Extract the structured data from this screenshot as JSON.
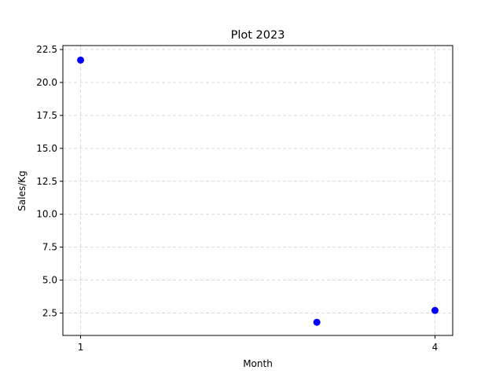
{
  "chart_data": {
    "type": "scatter",
    "title": "Plot 2023",
    "xlabel": "Month",
    "ylabel": "Sales/Kg",
    "x": [
      1,
      3,
      4
    ],
    "y": [
      21.7,
      1.8,
      2.7
    ],
    "xlim": [
      0.85,
      4.15
    ],
    "ylim": [
      0.8,
      22.8
    ],
    "xticks": [
      1,
      4
    ],
    "xtick_labels": [
      "1",
      "4"
    ],
    "yticks": [
      2.5,
      5.0,
      7.5,
      10.0,
      12.5,
      15.0,
      17.5,
      20.0,
      22.5
    ],
    "ytick_labels": [
      "2.5",
      "5.0",
      "7.5",
      "10.0",
      "12.5",
      "15.0",
      "17.5",
      "20.0",
      "22.5"
    ],
    "grid": true,
    "marker_color": "#0000ff",
    "grid_color": "#d9d9d9"
  }
}
